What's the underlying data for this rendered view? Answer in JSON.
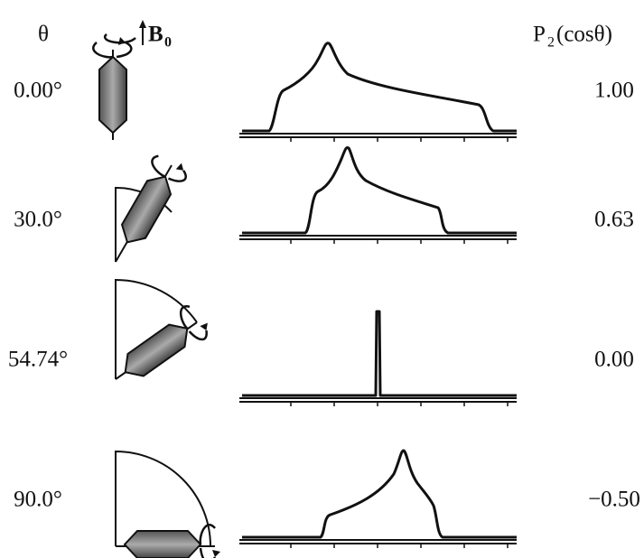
{
  "header": {
    "angle": "θ",
    "field": {
      "symbol": "B",
      "subscript": "0"
    },
    "p2": {
      "symbol": "P",
      "subscript": "2",
      "argument": "(cosθ)"
    }
  },
  "rows": [
    {
      "angle": "0.00°",
      "p2": "1.00"
    },
    {
      "angle": "30.0°",
      "p2": "0.63"
    },
    {
      "angle": "54.74°",
      "p2": "0.00"
    },
    {
      "angle": "90.0°",
      "p2": "−0.50"
    }
  ]
}
